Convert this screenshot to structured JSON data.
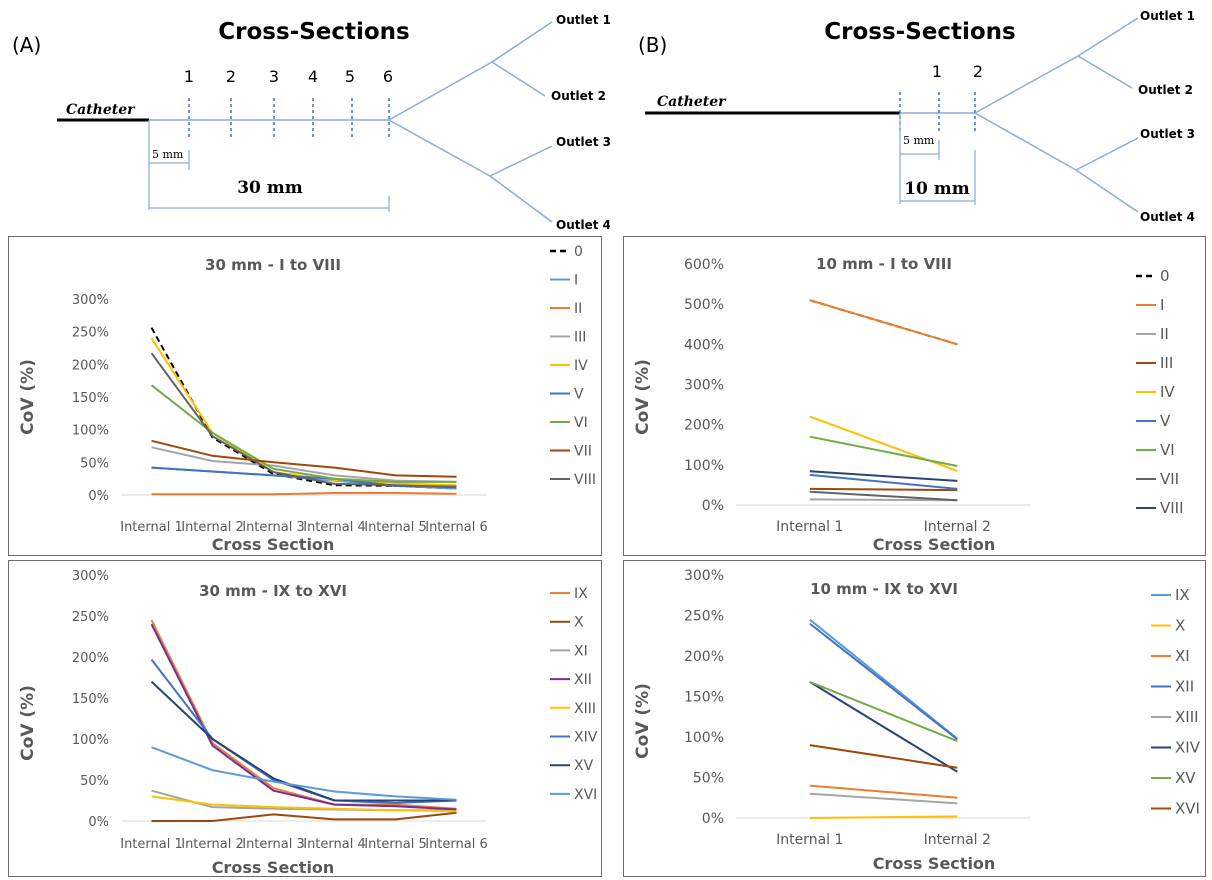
{
  "schematic_a": {
    "label": "(A)",
    "title": "Cross-Sections",
    "catheter": "Catheter",
    "section_numbers": [
      "1",
      "2",
      "3",
      "4",
      "5",
      "6"
    ],
    "small_dim": "5 mm",
    "big_dim": "30 mm",
    "outlets": [
      "Outlet 1",
      "Outlet 2",
      "Outlet 3",
      "Outlet 4"
    ]
  },
  "schematic_b": {
    "label": "(B)",
    "title": "Cross-Sections",
    "catheter": "Catheter",
    "section_numbers": [
      "1",
      "2"
    ],
    "small_dim": "5 mm",
    "big_dim": "10 mm",
    "outlets": [
      "Outlet 1",
      "Outlet 2",
      "Outlet 3",
      "Outlet 4"
    ]
  },
  "chart_data": [
    {
      "type": "line",
      "title": "30 mm - I to VIII",
      "xlabel": "Cross Section",
      "ylabel": "CoV (%)",
      "ylim": [
        0,
        300
      ],
      "yticks": [
        "0%",
        "50%",
        "100%",
        "150%",
        "200%",
        "250%",
        "300%"
      ],
      "categories": [
        "Internal 1",
        "Internal 2",
        "Internal 3",
        "Internal 4",
        "Internal 5",
        "Internal 6"
      ],
      "legend_position": "right",
      "series": [
        {
          "name": "0",
          "color": "#000000",
          "dashed": true,
          "values": [
            256,
            88,
            32,
            15,
            14,
            10
          ]
        },
        {
          "name": "I",
          "color": "#5b9bd5",
          "values": [
            42,
            36,
            30,
            22,
            14,
            10
          ]
        },
        {
          "name": "II",
          "color": "#ed7d31",
          "values": [
            1,
            1,
            1,
            3,
            3,
            2
          ]
        },
        {
          "name": "III",
          "color": "#a5a5a5",
          "values": [
            73,
            52,
            45,
            30,
            22,
            20
          ]
        },
        {
          "name": "IV",
          "color": "#ffc000",
          "values": [
            240,
            95,
            35,
            23,
            18,
            15
          ]
        },
        {
          "name": "V",
          "color": "#4472c4",
          "values": [
            42,
            36,
            30,
            25,
            14,
            13
          ]
        },
        {
          "name": "VI",
          "color": "#70ad47",
          "values": [
            168,
            95,
            40,
            25,
            20,
            20
          ]
        },
        {
          "name": "VII",
          "color": "#9e480e",
          "values": [
            83,
            60,
            50,
            42,
            30,
            28
          ]
        },
        {
          "name": "VIII",
          "color": "#636363",
          "values": [
            217,
            90,
            35,
            17,
            15,
            12
          ]
        }
      ]
    },
    {
      "type": "line",
      "title": "10 mm - I to VIII",
      "xlabel": "Cross Section",
      "ylabel": "CoV (%)",
      "ylim": [
        0,
        600
      ],
      "yticks": [
        "0%",
        "100%",
        "200%",
        "300%",
        "400%",
        "500%",
        "600%"
      ],
      "categories": [
        "Internal 1",
        "Internal 2"
      ],
      "legend_position": "right",
      "series": [
        {
          "name": "0",
          "color": "#000000",
          "dashed": true,
          "values": [
            510,
            400
          ]
        },
        {
          "name": "I",
          "color": "#ed7d31",
          "values": [
            510,
            400
          ]
        },
        {
          "name": "II",
          "color": "#a5a5a5",
          "values": [
            14,
            12
          ]
        },
        {
          "name": "III",
          "color": "#9e480e",
          "values": [
            40,
            37
          ]
        },
        {
          "name": "IV",
          "color": "#ffc000",
          "values": [
            220,
            85
          ]
        },
        {
          "name": "V",
          "color": "#4472c4",
          "values": [
            75,
            40
          ]
        },
        {
          "name": "VI",
          "color": "#70ad47",
          "values": [
            170,
            97
          ]
        },
        {
          "name": "VII",
          "color": "#636363",
          "values": [
            33,
            12
          ]
        },
        {
          "name": "VIII",
          "color": "#264478",
          "values": [
            84,
            60
          ]
        }
      ]
    },
    {
      "type": "line",
      "title": "30 mm - IX to XVI",
      "xlabel": "Cross Section",
      "ylabel": "CoV (%)",
      "ylim": [
        0,
        300
      ],
      "yticks": [
        "0%",
        "50%",
        "100%",
        "150%",
        "200%",
        "250%",
        "300%"
      ],
      "categories": [
        "Internal 1",
        "Internal 2",
        "Internal 3",
        "Internal 4",
        "Internal 5",
        "Internal 6"
      ],
      "legend_position": "right",
      "series": [
        {
          "name": "IX",
          "color": "#ed7d31",
          "values": [
            245,
            95,
            40,
            20,
            20,
            15
          ]
        },
        {
          "name": "X",
          "color": "#9e480e",
          "values": [
            0,
            0,
            8,
            2,
            2,
            10
          ]
        },
        {
          "name": "XI",
          "color": "#a5a5a5",
          "values": [
            37,
            17,
            15,
            14,
            13,
            13
          ]
        },
        {
          "name": "XII",
          "color": "#7030a0",
          "values": [
            240,
            92,
            37,
            20,
            18,
            14
          ]
        },
        {
          "name": "XIII",
          "color": "#ffc000",
          "values": [
            30,
            20,
            17,
            15,
            13,
            12
          ]
        },
        {
          "name": "XIV",
          "color": "#4472c4",
          "values": [
            197,
            100,
            50,
            25,
            22,
            25
          ]
        },
        {
          "name": "XV",
          "color": "#264478",
          "values": [
            170,
            100,
            52,
            25,
            25,
            25
          ]
        },
        {
          "name": "XVI",
          "color": "#5b9bd5",
          "values": [
            90,
            62,
            48,
            36,
            30,
            26
          ]
        }
      ]
    },
    {
      "type": "line",
      "title": "10 mm - IX to XVI",
      "xlabel": "Cross Section",
      "ylabel": "CoV (%)",
      "ylim": [
        0,
        300
      ],
      "yticks": [
        "0%",
        "50%",
        "100%",
        "150%",
        "200%",
        "250%",
        "300%"
      ],
      "categories": [
        "Internal 1",
        "Internal 2"
      ],
      "legend_position": "right",
      "series": [
        {
          "name": "IX",
          "color": "#5b9bd5",
          "values": [
            245,
            98
          ]
        },
        {
          "name": "X",
          "color": "#ffc000",
          "values": [
            0,
            2
          ]
        },
        {
          "name": "XI",
          "color": "#ed7d31",
          "values": [
            40,
            25
          ]
        },
        {
          "name": "XII",
          "color": "#4472c4",
          "values": [
            240,
            97
          ]
        },
        {
          "name": "XIII",
          "color": "#a5a5a5",
          "values": [
            30,
            18
          ]
        },
        {
          "name": "XIV",
          "color": "#264478",
          "values": [
            168,
            57
          ]
        },
        {
          "name": "XV",
          "color": "#70ad47",
          "values": [
            168,
            95
          ]
        },
        {
          "name": "XVI",
          "color": "#9e480e",
          "values": [
            90,
            62
          ]
        }
      ]
    }
  ]
}
